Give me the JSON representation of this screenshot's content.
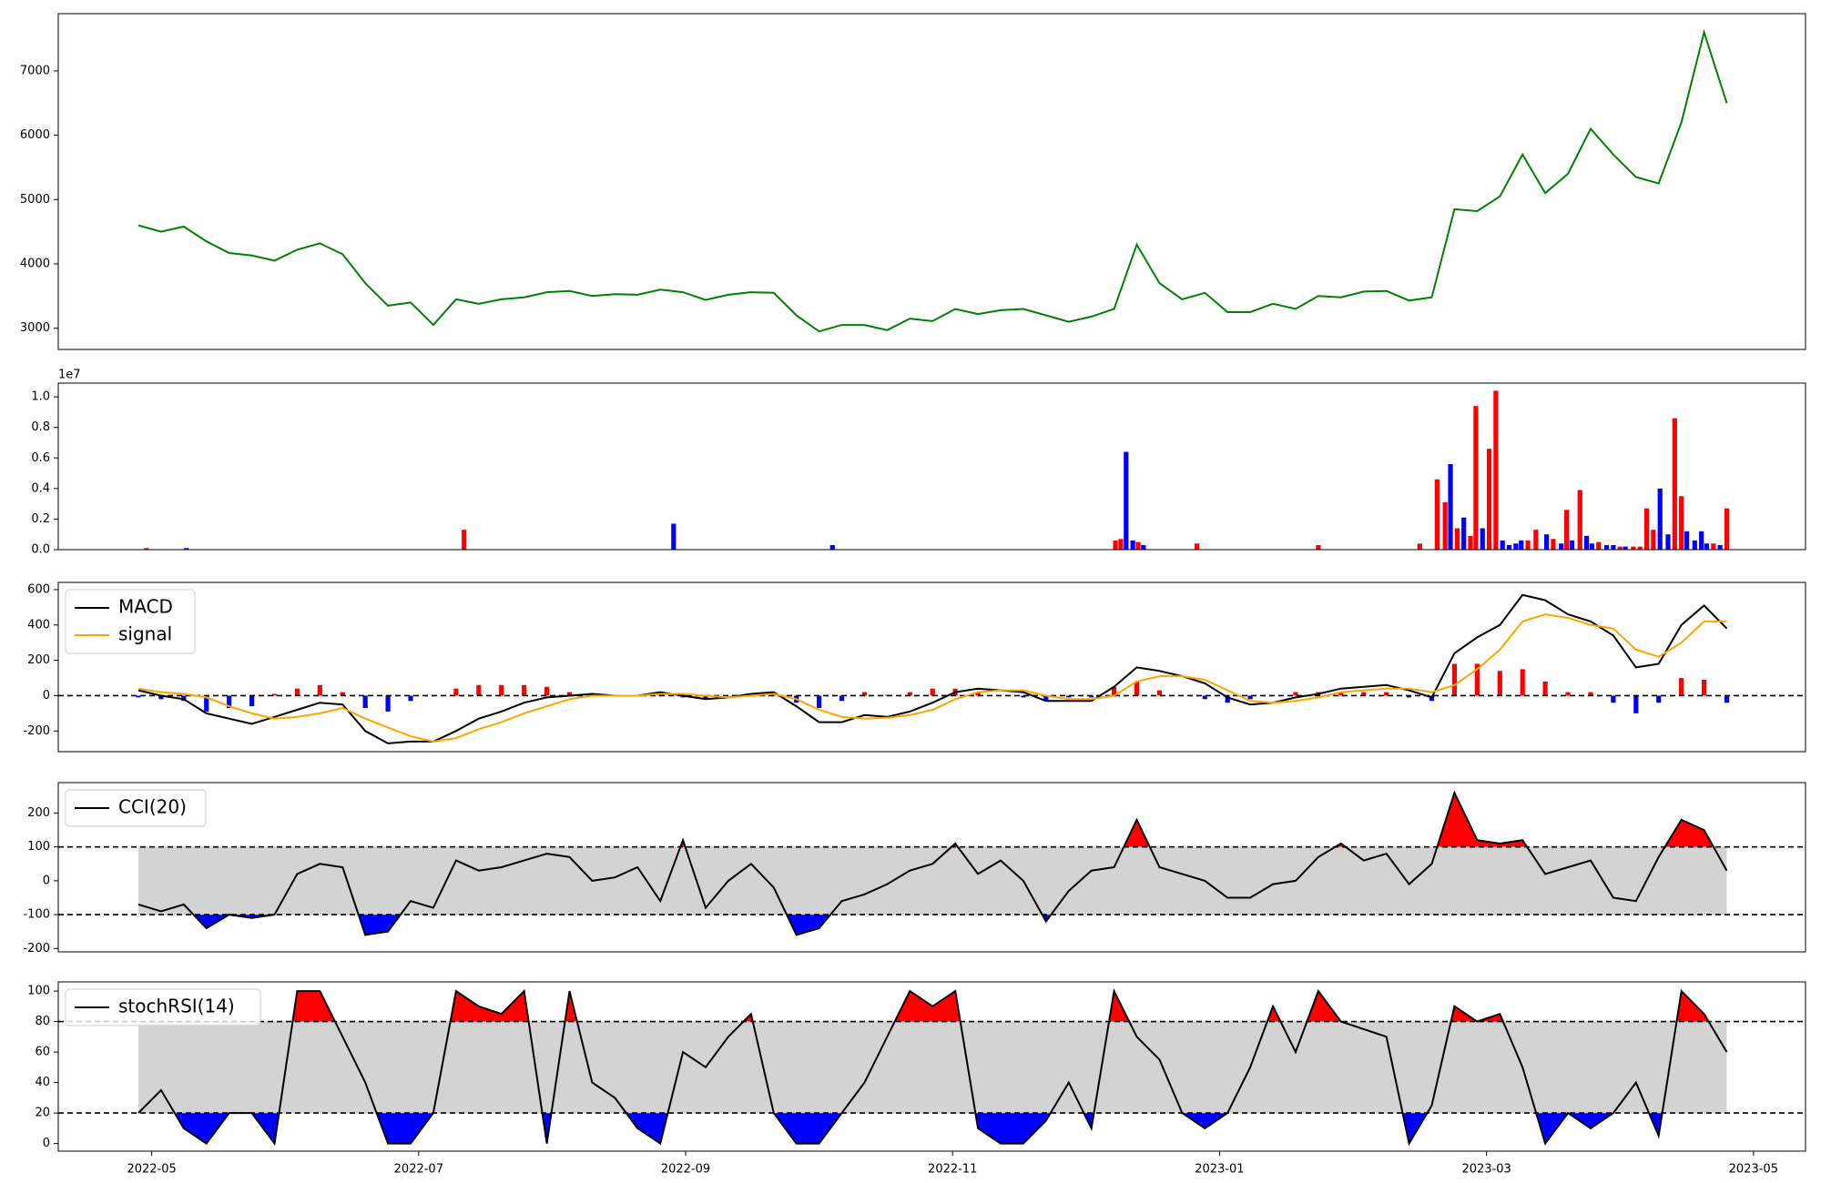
{
  "chart_data": [
    {
      "type": "line",
      "x": [
        4.9,
        5.07,
        5.24,
        5.41,
        5.58,
        5.75,
        5.92,
        6.09,
        6.26,
        6.43,
        6.6,
        6.77,
        6.94,
        7.11,
        7.28,
        7.45,
        7.62,
        7.79,
        7.96,
        8.13,
        8.3,
        8.47,
        8.64,
        8.81,
        8.98,
        9.15,
        9.32,
        9.49,
        9.66,
        9.83,
        10,
        10.17,
        10.34,
        10.51,
        10.68,
        10.85,
        11.02,
        11.19,
        11.36,
        11.53,
        11.7,
        11.87,
        12.04,
        12.21,
        12.38,
        12.55,
        12.72,
        12.89,
        13.06,
        13.23,
        13.4,
        13.57,
        13.74,
        13.91,
        14.08,
        14.25,
        14.42,
        14.59,
        14.76,
        14.93,
        15.1,
        15.27,
        15.44,
        15.61,
        15.78,
        15.95,
        16.12,
        16.29,
        16.46,
        16.63,
        16.8
      ],
      "series": [
        {
          "color": "green",
          "values": [
            4600,
            4500,
            4580,
            4350,
            4170,
            4130,
            4050,
            4220,
            4320,
            4150,
            3700,
            3350,
            3400,
            3050,
            3450,
            3380,
            3450,
            3480,
            3560,
            3580,
            3500,
            3530,
            3520,
            3600,
            3560,
            3440,
            3520,
            3560,
            3550,
            3200,
            2950,
            3050,
            3050,
            2970,
            3150,
            3110,
            3300,
            3220,
            3280,
            3300,
            3200,
            3100,
            3180,
            3300,
            4300,
            3700,
            3450,
            3550,
            3250,
            3250,
            3380,
            3300,
            3500,
            3480,
            3570,
            3580,
            3430,
            3480,
            4850,
            4820,
            5050,
            5700,
            5100,
            5400,
            6100,
            5700,
            5350,
            5250,
            6200,
            7600,
            6500
          ]
        }
      ],
      "xlim": [
        4.3,
        17.39
      ],
      "ylim": [
        2670,
        7890
      ],
      "yticks": [
        3000,
        4000,
        5000,
        6000,
        7000
      ]
    },
    {
      "type": "bar",
      "x": [
        4.96,
        5.26,
        7.34,
        8.91,
        10.1,
        12.22,
        12.26,
        12.3,
        12.35,
        12.39,
        12.43,
        12.83,
        13.74,
        14.5,
        14.63,
        14.69,
        14.73,
        14.78,
        14.83,
        14.88,
        14.92,
        14.97,
        15.02,
        15.07,
        15.12,
        15.17,
        15.22,
        15.26,
        15.31,
        15.37,
        15.45,
        15.5,
        15.56,
        15.6,
        15.64,
        15.7,
        15.75,
        15.79,
        15.84,
        15.9,
        15.95,
        16,
        16.04,
        16.1,
        16.15,
        16.2,
        16.25,
        16.3,
        16.36,
        16.41,
        16.46,
        16.5,
        16.56,
        16.61,
        16.65,
        16.7,
        16.75,
        16.8
      ],
      "values": [
        0.01,
        0.01,
        0.13,
        0.17,
        0.03,
        0.06,
        0.07,
        0.64,
        0.06,
        0.05,
        0.03,
        0.04,
        0.03,
        0.04,
        0.46,
        0.31,
        0.56,
        0.14,
        0.21,
        0.09,
        0.94,
        0.14,
        0.66,
        1.04,
        0.06,
        0.03,
        0.04,
        0.06,
        0.06,
        0.13,
        0.1,
        0.07,
        0.04,
        0.26,
        0.06,
        0.39,
        0.09,
        0.04,
        0.05,
        0.03,
        0.03,
        0.02,
        0.02,
        0.02,
        0.02,
        0.27,
        0.13,
        0.4,
        0.1,
        0.86,
        0.35,
        0.12,
        0.06,
        0.12,
        0.04,
        0.04,
        0.03,
        0.27
      ],
      "colors": [
        "red",
        "blue",
        "red",
        "blue",
        "blue",
        "red",
        "red",
        "blue",
        "blue",
        "red",
        "blue",
        "red",
        "red",
        "red",
        "red",
        "red",
        "blue",
        "red",
        "blue",
        "red",
        "red",
        "blue",
        "red",
        "red",
        "blue",
        "blue",
        "blue",
        "blue",
        "red",
        "red",
        "blue",
        "red",
        "blue",
        "red",
        "blue",
        "red",
        "blue",
        "blue",
        "red",
        "blue",
        "blue",
        "red",
        "blue",
        "red",
        "red",
        "red",
        "red",
        "blue",
        "blue",
        "red",
        "red",
        "blue",
        "blue",
        "blue",
        "blue",
        "red",
        "blue",
        "red"
      ],
      "y_offset_label": "1e7",
      "xlim": [
        4.3,
        17.39
      ],
      "ylim": [
        0,
        1.09
      ],
      "yticks": [
        {
          "value": 0,
          "label": "0.0"
        },
        0.2,
        0.4,
        0.6,
        0.8,
        {
          "value": 1,
          "label": "1.0"
        }
      ]
    },
    {
      "type": "macd",
      "x": [
        4.9,
        5.07,
        5.24,
        5.41,
        5.58,
        5.75,
        5.92,
        6.09,
        6.26,
        6.43,
        6.6,
        6.77,
        6.94,
        7.11,
        7.28,
        7.45,
        7.62,
        7.79,
        7.96,
        8.13,
        8.3,
        8.47,
        8.64,
        8.81,
        8.98,
        9.15,
        9.32,
        9.49,
        9.66,
        9.83,
        10,
        10.17,
        10.34,
        10.51,
        10.68,
        10.85,
        11.02,
        11.19,
        11.36,
        11.53,
        11.7,
        11.87,
        12.04,
        12.21,
        12.38,
        12.55,
        12.72,
        12.89,
        13.06,
        13.23,
        13.4,
        13.57,
        13.74,
        13.91,
        14.08,
        14.25,
        14.42,
        14.59,
        14.76,
        14.93,
        15.1,
        15.27,
        15.44,
        15.61,
        15.78,
        15.95,
        16.12,
        16.29,
        16.46,
        16.63,
        16.8
      ],
      "series": [
        {
          "name": "MACD",
          "color": "black",
          "values": [
            30,
            0,
            -20,
            -100,
            -130,
            -160,
            -120,
            -80,
            -40,
            -50,
            -200,
            -270,
            -260,
            -260,
            -200,
            -130,
            -90,
            -40,
            -10,
            0,
            10,
            0,
            0,
            20,
            0,
            -20,
            -10,
            10,
            20,
            -60,
            -150,
            -150,
            -110,
            -120,
            -90,
            -40,
            20,
            40,
            30,
            20,
            -30,
            -30,
            -30,
            50,
            160,
            140,
            110,
            70,
            -10,
            -50,
            -40,
            -10,
            10,
            40,
            50,
            60,
            30,
            -10,
            240,
            330,
            400,
            570,
            540,
            460,
            420,
            340,
            160,
            180,
            400,
            510,
            380
          ]
        },
        {
          "name": "signal",
          "color": "orange",
          "values": [
            40,
            20,
            10,
            -10,
            -60,
            -100,
            -130,
            -120,
            -100,
            -70,
            -130,
            -180,
            -230,
            -260,
            -240,
            -190,
            -150,
            -100,
            -60,
            -20,
            0,
            0,
            0,
            10,
            10,
            0,
            -10,
            0,
            10,
            -20,
            -80,
            -120,
            -130,
            -125,
            -110,
            -80,
            -20,
            20,
            30,
            30,
            0,
            -20,
            -20,
            0,
            80,
            110,
            110,
            90,
            30,
            -30,
            -40,
            -30,
            -10,
            20,
            30,
            40,
            40,
            20,
            60,
            150,
            260,
            420,
            460,
            440,
            400,
            380,
            260,
            220,
            300,
            420,
            420
          ]
        }
      ],
      "histogram": {
        "values": [
          -10,
          -20,
          -30,
          -90,
          -70,
          -60,
          10,
          40,
          60,
          20,
          -70,
          -90,
          -30,
          0,
          40,
          60,
          60,
          60,
          50,
          20,
          10,
          0,
          0,
          10,
          -10,
          -20,
          0,
          10,
          10,
          -40,
          -70,
          -30,
          20,
          5,
          20,
          40,
          40,
          20,
          0,
          -10,
          -30,
          -10,
          -10,
          50,
          80,
          30,
          0,
          -20,
          -40,
          -20,
          0,
          20,
          20,
          20,
          20,
          20,
          -10,
          -30,
          180,
          180,
          140,
          150,
          80,
          20,
          20,
          -40,
          -100,
          -40,
          100,
          90,
          -40
        ],
        "pos_color": "red",
        "neg_color": "blue"
      },
      "hline": 0,
      "legend": "upper left",
      "xlim": [
        4.3,
        17.39
      ],
      "ylim": [
        -317,
        641
      ],
      "yticks": [
        -200,
        0,
        200,
        400,
        600
      ]
    },
    {
      "type": "oscillator",
      "x": [
        4.9,
        5.07,
        5.24,
        5.41,
        5.58,
        5.75,
        5.92,
        6.09,
        6.26,
        6.43,
        6.6,
        6.77,
        6.94,
        7.11,
        7.28,
        7.45,
        7.62,
        7.79,
        7.96,
        8.13,
        8.3,
        8.47,
        8.64,
        8.81,
        8.98,
        9.15,
        9.32,
        9.49,
        9.66,
        9.83,
        10,
        10.17,
        10.34,
        10.51,
        10.68,
        10.85,
        11.02,
        11.19,
        11.36,
        11.53,
        11.7,
        11.87,
        12.04,
        12.21,
        12.38,
        12.55,
        12.72,
        12.89,
        13.06,
        13.23,
        13.4,
        13.57,
        13.74,
        13.91,
        14.08,
        14.25,
        14.42,
        14.59,
        14.76,
        14.93,
        15.1,
        15.27,
        15.44,
        15.61,
        15.78,
        15.95,
        16.12,
        16.29,
        16.46,
        16.63,
        16.8
      ],
      "series": [
        {
          "name": "CCI(20)",
          "color": "black",
          "values": [
            -70,
            -90,
            -70,
            -140,
            -100,
            -110,
            -100,
            20,
            50,
            40,
            -160,
            -150,
            -60,
            -80,
            60,
            30,
            40,
            60,
            80,
            70,
            0,
            10,
            40,
            -60,
            120,
            -80,
            0,
            50,
            -20,
            -160,
            -140,
            -60,
            -40,
            -10,
            30,
            50,
            110,
            20,
            60,
            0,
            -120,
            -30,
            30,
            40,
            180,
            40,
            20,
            0,
            -50,
            -50,
            -10,
            0,
            70,
            110,
            60,
            80,
            -10,
            50,
            260,
            120,
            110,
            120,
            20,
            40,
            60,
            -50,
            -60,
            70,
            180,
            150,
            30
          ]
        }
      ],
      "bands": [
        -100,
        100
      ],
      "band_color": "lightgray",
      "upper_color": "red",
      "lower_color": "blue",
      "legend": "upper left",
      "xlim": [
        4.3,
        17.39
      ],
      "ylim": [
        -210,
        290
      ],
      "yticks": [
        -200,
        -100,
        0,
        100,
        200
      ]
    },
    {
      "type": "oscillator",
      "x": [
        4.9,
        5.07,
        5.24,
        5.41,
        5.58,
        5.75,
        5.92,
        6.09,
        6.26,
        6.43,
        6.6,
        6.77,
        6.94,
        7.11,
        7.28,
        7.45,
        7.62,
        7.79,
        7.96,
        8.13,
        8.3,
        8.47,
        8.64,
        8.81,
        8.98,
        9.15,
        9.32,
        9.49,
        9.66,
        9.83,
        10,
        10.17,
        10.34,
        10.51,
        10.68,
        10.85,
        11.02,
        11.19,
        11.36,
        11.53,
        11.7,
        11.87,
        12.04,
        12.21,
        12.38,
        12.55,
        12.72,
        12.89,
        13.06,
        13.23,
        13.4,
        13.57,
        13.74,
        13.91,
        14.08,
        14.25,
        14.42,
        14.59,
        14.76,
        14.93,
        15.1,
        15.27,
        15.44,
        15.61,
        15.78,
        15.95,
        16.12,
        16.29,
        16.46,
        16.63,
        16.8
      ],
      "series": [
        {
          "name": "stochRSI(14)",
          "color": "black",
          "values": [
            20,
            35,
            10,
            0,
            20,
            20,
            0,
            100,
            100,
            70,
            40,
            0,
            0,
            20,
            100,
            90,
            85,
            100,
            0,
            100,
            40,
            30,
            10,
            0,
            60,
            50,
            70,
            85,
            20,
            0,
            0,
            20,
            40,
            70,
            100,
            90,
            100,
            10,
            0,
            0,
            15,
            40,
            10,
            100,
            70,
            55,
            20,
            10,
            20,
            50,
            90,
            60,
            100,
            80,
            75,
            70,
            0,
            25,
            90,
            80,
            85,
            50,
            0,
            20,
            10,
            20,
            40,
            5,
            100,
            85,
            60
          ]
        }
      ],
      "bands": [
        20,
        80
      ],
      "band_color": "lightgray",
      "upper_color": "red",
      "lower_color": "blue",
      "legend": "upper left",
      "xlim": [
        4.3,
        17.39
      ],
      "ylim": [
        -5,
        106
      ],
      "yticks": [
        0,
        20,
        40,
        60,
        80,
        100
      ],
      "xticks": [
        {
          "value": 5,
          "label": "2022-05"
        },
        {
          "value": 7,
          "label": "2022-07"
        },
        {
          "value": 9,
          "label": "2022-09"
        },
        {
          "value": 11,
          "label": "2022-11"
        },
        {
          "value": 13,
          "label": "2023-01"
        },
        {
          "value": 15,
          "label": "2023-03"
        },
        {
          "value": 17,
          "label": "2023-05"
        }
      ]
    }
  ]
}
